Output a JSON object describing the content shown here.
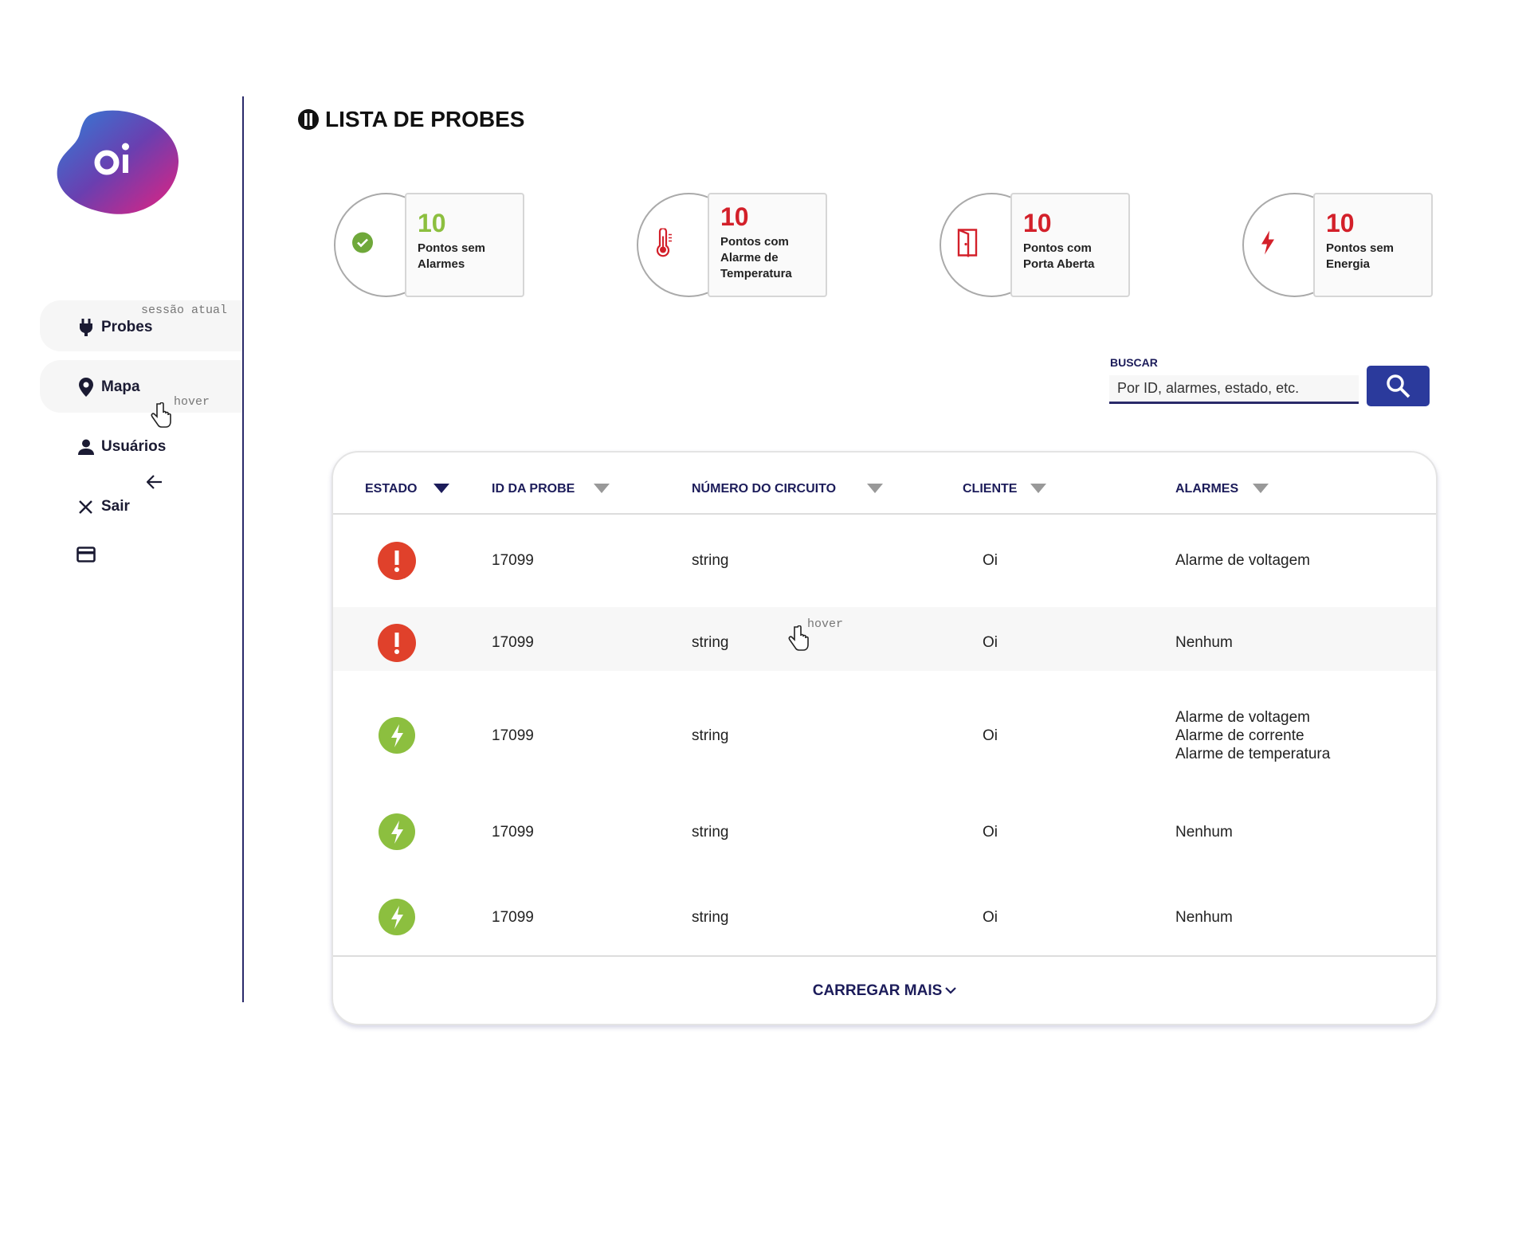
{
  "sidebar": {
    "nav": [
      {
        "label": "Probes",
        "note": "sessão atual"
      },
      {
        "label": "Mapa",
        "note": "hover"
      },
      {
        "label": "Usuários"
      },
      {
        "label": "Sair"
      }
    ]
  },
  "header": {
    "title": "LISTA DE PROBES"
  },
  "cards": [
    {
      "count": "10",
      "label": "Pontos sem Alarmes",
      "kind": "ok"
    },
    {
      "count": "10",
      "label": "Pontos com Alarme de Temperatura",
      "kind": "temp"
    },
    {
      "count": "10",
      "label": "Pontos com Porta Aberta",
      "kind": "door"
    },
    {
      "count": "10",
      "label": "Pontos sem Energia",
      "kind": "power"
    }
  ],
  "search": {
    "label": "BUSCAR",
    "placeholder": "Por ID, alarmes, estado, etc."
  },
  "table": {
    "headers": [
      "ESTADO",
      "ID DA PROBE",
      "NÚMERO DO CIRCUITO",
      "CLIENTE",
      "ALARMES"
    ],
    "rows": [
      {
        "status": "alarm",
        "id": "17099",
        "circuit": "string",
        "client": "Oi",
        "alarms": [
          "Alarme de voltagem"
        ]
      },
      {
        "status": "alarm",
        "id": "17099",
        "circuit": "string",
        "client": "Oi",
        "alarms": [
          "Nenhum"
        ],
        "note": "hover"
      },
      {
        "status": "ok",
        "id": "17099",
        "circuit": "string",
        "client": "Oi",
        "alarms": [
          "Alarme de voltagem",
          "Alarme de corrente",
          "Alarme de temperatura"
        ]
      },
      {
        "status": "ok",
        "id": "17099",
        "circuit": "string",
        "client": "Oi",
        "alarms": [
          "Nenhum"
        ]
      },
      {
        "status": "ok",
        "id": "17099",
        "circuit": "string",
        "client": "Oi",
        "alarms": [
          "Nenhum"
        ]
      }
    ],
    "load_more": "CARREGAR MAIS"
  }
}
